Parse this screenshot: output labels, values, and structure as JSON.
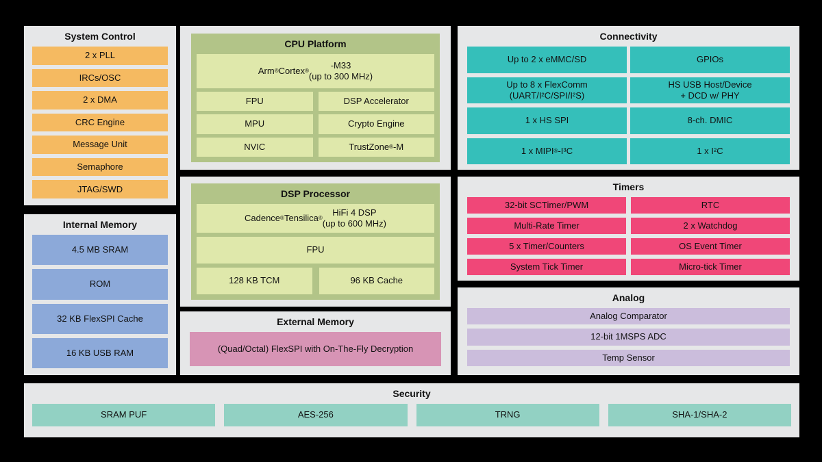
{
  "system_control": {
    "title": "System Control",
    "items": [
      "2 x PLL",
      "IRCs/OSC",
      "2 x DMA",
      "CRC Engine",
      "Message Unit",
      "Semaphore",
      "JTAG/SWD"
    ]
  },
  "internal_memory": {
    "title": "Internal Memory",
    "items": [
      "4.5 MB SRAM",
      "ROM",
      "32 KB FlexSPI Cache",
      "16 KB USB RAM"
    ]
  },
  "cpu_platform": {
    "title": "CPU Platform",
    "core": "Arm® Cortex®-M33\n(up to 300 MHz)",
    "items": [
      "FPU",
      "DSP Accelerator",
      "MPU",
      "Crypto Engine",
      "NVIC",
      "TrustZone®-M"
    ]
  },
  "dsp_processor": {
    "title": "DSP Processor",
    "core": "Cadence® Tensilica® HiFi 4 DSP\n(up to 600 MHz)",
    "fpu": "FPU",
    "items": [
      "128 KB TCM",
      "96 KB Cache"
    ]
  },
  "external_memory": {
    "title": "External Memory",
    "items": [
      "(Quad/Octal) FlexSPI with On-The-Fly Decryption"
    ]
  },
  "connectivity": {
    "title": "Connectivity",
    "items": [
      "Up to 2 x eMMC/SD",
      "GPIOs",
      "Up to 8 x FlexComm\n(UART/I²C/SPI/I²S)",
      "HS USB Host/Device\n+ DCD w/ PHY",
      "1 x HS SPI",
      "8-ch. DMIC",
      "1 x MIPI®-I³C",
      "1 x I²C"
    ]
  },
  "timers": {
    "title": "Timers",
    "items": [
      "32-bit SCTimer/PWM",
      "RTC",
      "Multi-Rate Timer",
      "2 x Watchdog",
      "5 x Timer/Counters",
      "OS Event Timer",
      "System Tick Timer",
      "Micro-tick Timer"
    ]
  },
  "analog": {
    "title": "Analog",
    "items": [
      "Analog Comparator",
      "12-bit 1MSPS ADC",
      "Temp Sensor"
    ]
  },
  "security": {
    "title": "Security",
    "items": [
      "SRAM PUF",
      "AES-256",
      "TRNG",
      "SHA-1/SHA-2"
    ]
  },
  "colors": {
    "background": "#000000",
    "panel": "#E6E7E8",
    "system_control": "#F5BA61",
    "internal_memory": "#8CA9D9",
    "cpu_wrap": "#B2C488",
    "cpu_block": "#DFE8AB",
    "connectivity": "#35BFBA",
    "timers": "#F04778",
    "external_memory": "#D794B5",
    "analog": "#CBBDDC",
    "security": "#92D1C3",
    "text": "#121212"
  }
}
